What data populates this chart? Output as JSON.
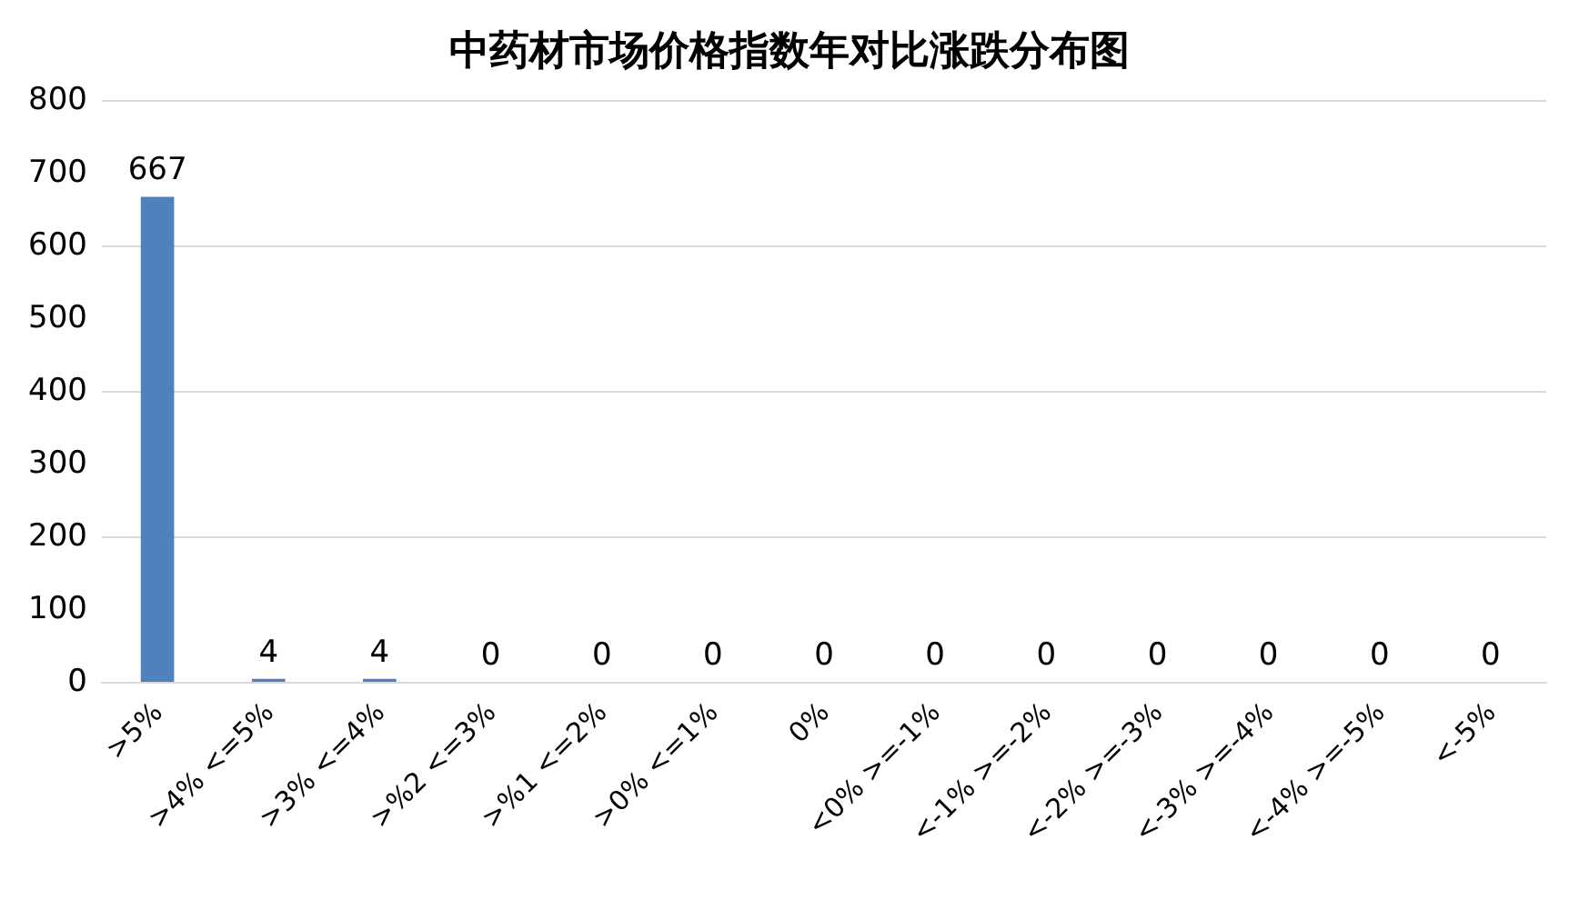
{
  "chart_data": {
    "type": "bar",
    "title": "中药材市场价格指数年对比涨跌分布图",
    "categories": [
      ">5%",
      ">4% <=5%",
      ">3% <=4%",
      ">%2 <=3%",
      ">%1 <=2%",
      ">0% <=1%",
      "0%",
      "<0% >=-1%",
      "<-1% >=-2%",
      "<-2% >=-3%",
      "<-3% >=-4%",
      "<-4% >=-5%",
      "<-5%"
    ],
    "values": [
      667,
      4,
      4,
      0,
      0,
      0,
      0,
      0,
      0,
      0,
      0,
      0,
      0
    ],
    "color": "#4f81bd",
    "ylim": [
      0,
      800
    ],
    "yticks": [
      0,
      100,
      200,
      300,
      400,
      500,
      600,
      700,
      800
    ],
    "grid": "y",
    "data_labels": true
  }
}
